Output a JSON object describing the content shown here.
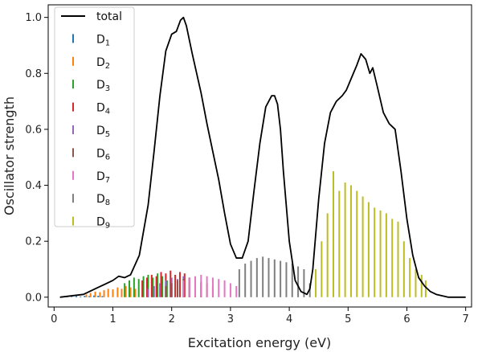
{
  "chart_data": {
    "type": "line",
    "title": "",
    "xlabel": "Excitation energy (eV)",
    "ylabel": "Oscillator strength",
    "xlim": [
      -0.1,
      7.1
    ],
    "ylim": [
      -0.035,
      1.045
    ],
    "xticks": [
      "0",
      "1",
      "2",
      "3",
      "4",
      "5",
      "6",
      "7"
    ],
    "yticks": [
      "0.0",
      "0.2",
      "0.4",
      "0.6",
      "0.8",
      "1.0"
    ],
    "legend_position": "upper-left",
    "legend": [
      {
        "base": "total",
        "sub": "",
        "color": "#000000"
      },
      {
        "base": "D",
        "sub": "1",
        "color": "#1f77b4"
      },
      {
        "base": "D",
        "sub": "2",
        "color": "#ff7f0e"
      },
      {
        "base": "D",
        "sub": "3",
        "color": "#2ca02c"
      },
      {
        "base": "D",
        "sub": "4",
        "color": "#d62728"
      },
      {
        "base": "D",
        "sub": "5",
        "color": "#9467bd"
      },
      {
        "base": "D",
        "sub": "6",
        "color": "#8c564b"
      },
      {
        "base": "D",
        "sub": "7",
        "color": "#e377c2"
      },
      {
        "base": "D",
        "sub": "8",
        "color": "#7f7f7f"
      },
      {
        "base": "D",
        "sub": "9",
        "color": "#bcbd22"
      }
    ],
    "total": {
      "name": "total",
      "x": [
        0.1,
        0.5,
        0.7,
        0.9,
        1.0,
        1.1,
        1.2,
        1.3,
        1.45,
        1.6,
        1.7,
        1.8,
        1.9,
        2.0,
        2.08,
        2.15,
        2.2,
        2.25,
        2.35,
        2.5,
        2.6,
        2.7,
        2.8,
        2.9,
        3.0,
        3.1,
        3.2,
        3.3,
        3.4,
        3.5,
        3.6,
        3.7,
        3.75,
        3.8,
        3.85,
        3.9,
        4.0,
        4.1,
        4.2,
        4.3,
        4.35,
        4.4,
        4.5,
        4.6,
        4.7,
        4.8,
        4.9,
        4.97,
        5.05,
        5.15,
        5.22,
        5.3,
        5.37,
        5.42,
        5.5,
        5.6,
        5.7,
        5.8,
        5.9,
        6.0,
        6.1,
        6.2,
        6.3,
        6.4,
        6.5,
        6.7,
        7.0
      ],
      "y": [
        0.0,
        0.01,
        0.03,
        0.05,
        0.06,
        0.075,
        0.07,
        0.08,
        0.15,
        0.33,
        0.52,
        0.72,
        0.88,
        0.94,
        0.95,
        0.99,
        1.0,
        0.97,
        0.87,
        0.73,
        0.62,
        0.52,
        0.42,
        0.3,
        0.19,
        0.14,
        0.14,
        0.2,
        0.38,
        0.55,
        0.68,
        0.72,
        0.72,
        0.69,
        0.6,
        0.45,
        0.2,
        0.06,
        0.02,
        0.01,
        0.03,
        0.1,
        0.35,
        0.55,
        0.66,
        0.7,
        0.72,
        0.74,
        0.78,
        0.83,
        0.87,
        0.85,
        0.8,
        0.82,
        0.75,
        0.66,
        0.62,
        0.6,
        0.45,
        0.28,
        0.15,
        0.07,
        0.04,
        0.02,
        0.01,
        0.0,
        0.0
      ]
    },
    "sticks": [
      {
        "name": "D1",
        "x": [
          0.15,
          0.22,
          0.3,
          0.38,
          0.45,
          0.52,
          0.6,
          0.68,
          0.75,
          0.82
        ],
        "y": [
          0.002,
          0.003,
          0.002,
          0.004,
          0.003,
          0.005,
          0.004,
          0.006,
          0.005,
          0.004
        ]
      },
      {
        "name": "D2",
        "x": [
          0.55,
          0.62,
          0.7,
          0.78,
          0.85,
          0.92,
          1.0,
          1.08,
          1.15,
          1.22,
          1.3,
          1.38
        ],
        "y": [
          0.01,
          0.015,
          0.02,
          0.018,
          0.025,
          0.03,
          0.028,
          0.035,
          0.03,
          0.04,
          0.035,
          0.03
        ]
      },
      {
        "name": "D3",
        "x": [
          1.2,
          1.28,
          1.36,
          1.44,
          1.52,
          1.6,
          1.68,
          1.76,
          1.84,
          1.92
        ],
        "y": [
          0.05,
          0.06,
          0.07,
          0.065,
          0.075,
          0.08,
          0.07,
          0.085,
          0.075,
          0.06
        ]
      },
      {
        "name": "D4",
        "x": [
          1.5,
          1.58,
          1.66,
          1.74,
          1.82,
          1.9,
          1.98,
          2.06,
          2.14,
          2.22,
          2.3
        ],
        "y": [
          0.06,
          0.07,
          0.08,
          0.075,
          0.09,
          0.085,
          0.095,
          0.08,
          0.09,
          0.085,
          0.07
        ]
      },
      {
        "name": "D5",
        "x": [
          1.6,
          1.7,
          1.8,
          1.9,
          2.0,
          2.1,
          2.2,
          2.3,
          2.4,
          2.5
        ],
        "y": [
          0.03,
          0.04,
          0.05,
          0.06,
          0.07,
          0.065,
          0.075,
          0.07,
          0.06,
          0.05
        ]
      },
      {
        "name": "D6",
        "x": [
          1.9,
          2.0,
          2.1,
          2.2,
          2.3,
          2.4,
          2.5,
          2.6,
          2.7
        ],
        "y": [
          0.04,
          0.05,
          0.06,
          0.065,
          0.07,
          0.06,
          0.055,
          0.05,
          0.04
        ]
      },
      {
        "name": "D7",
        "x": [
          2.2,
          2.3,
          2.4,
          2.5,
          2.6,
          2.7,
          2.8,
          2.9,
          3.0,
          3.1
        ],
        "y": [
          0.06,
          0.07,
          0.075,
          0.08,
          0.075,
          0.07,
          0.065,
          0.06,
          0.05,
          0.04
        ]
      },
      {
        "name": "D8",
        "x": [
          3.15,
          3.25,
          3.35,
          3.45,
          3.55,
          3.65,
          3.75,
          3.85,
          3.95,
          4.05,
          4.15,
          4.25,
          4.35
        ],
        "y": [
          0.1,
          0.12,
          0.13,
          0.14,
          0.145,
          0.14,
          0.135,
          0.13,
          0.125,
          0.12,
          0.11,
          0.1,
          0.05
        ]
      },
      {
        "name": "D9",
        "x": [
          4.45,
          4.55,
          4.65,
          4.75,
          4.85,
          4.95,
          5.05,
          5.15,
          5.25,
          5.35,
          5.45,
          5.55,
          5.65,
          5.75,
          5.85,
          5.95,
          6.05,
          6.15,
          6.25,
          6.32
        ],
        "y": [
          0.1,
          0.2,
          0.3,
          0.45,
          0.38,
          0.41,
          0.4,
          0.38,
          0.36,
          0.34,
          0.32,
          0.31,
          0.3,
          0.28,
          0.27,
          0.2,
          0.14,
          0.1,
          0.08,
          0.06
        ]
      }
    ]
  }
}
